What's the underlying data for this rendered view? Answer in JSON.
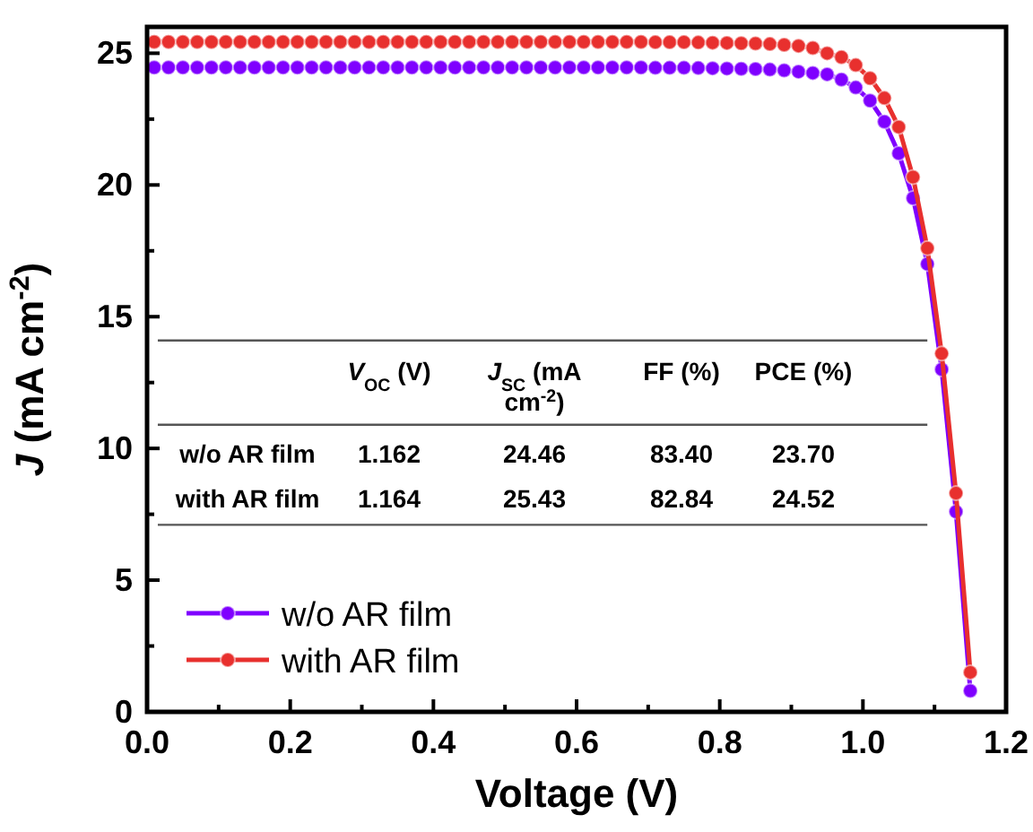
{
  "chart_data": {
    "type": "line",
    "xlabel": "Voltage (V)",
    "ylabel": "J (mA cm$^{-2}$)",
    "xlim": [
      0,
      1.2
    ],
    "ylim": [
      0,
      26
    ],
    "xticks": [
      {
        "value": 0,
        "label": "0.0"
      },
      {
        "value": 0.1,
        "label": null
      },
      {
        "value": 0.2,
        "label": "0.2"
      },
      {
        "value": 0.3,
        "label": null
      },
      {
        "value": 0.4,
        "label": "0.4"
      },
      {
        "value": 0.5,
        "label": null
      },
      {
        "value": 0.6,
        "label": "0.6"
      },
      {
        "value": 0.7,
        "label": null
      },
      {
        "value": 0.8,
        "label": "0.8"
      },
      {
        "value": 0.9,
        "label": null
      },
      {
        "value": 1,
        "label": "1.0"
      },
      {
        "value": 1.1,
        "label": null
      },
      {
        "value": 1.2,
        "label": "1.2"
      }
    ],
    "yticks": [
      0,
      {
        "value": 2.5,
        "label": null
      },
      5,
      {
        "value": 7.5,
        "label": null
      },
      10,
      {
        "value": 12.5,
        "label": null
      },
      15,
      {
        "value": 17.5,
        "label": null
      },
      20,
      {
        "value": 22.5,
        "label": null
      },
      25
    ],
    "x": [
      0.01,
      0.03,
      0.05,
      0.07,
      0.09,
      0.11,
      0.13,
      0.15,
      0.17,
      0.19,
      0.21,
      0.23,
      0.25,
      0.27,
      0.29,
      0.31,
      0.33,
      0.35,
      0.37,
      0.39,
      0.41,
      0.43,
      0.45,
      0.47,
      0.49,
      0.51,
      0.53,
      0.55,
      0.57,
      0.59,
      0.61,
      0.63,
      0.65,
      0.67,
      0.69,
      0.71,
      0.73,
      0.75,
      0.77,
      0.79,
      0.81,
      0.83,
      0.85,
      0.87,
      0.89,
      0.91,
      0.93,
      0.95,
      0.97,
      0.99,
      1.01,
      1.03,
      1.05,
      1.07,
      1.09,
      1.11,
      1.13,
      1.15
    ],
    "series": [
      {
        "name": "w/o AR film",
        "color": "#7f00ff",
        "values": [
          24.46,
          24.46,
          24.46,
          24.46,
          24.46,
          24.46,
          24.46,
          24.46,
          24.46,
          24.46,
          24.46,
          24.46,
          24.46,
          24.46,
          24.46,
          24.46,
          24.46,
          24.46,
          24.46,
          24.46,
          24.46,
          24.46,
          24.46,
          24.46,
          24.46,
          24.46,
          24.46,
          24.46,
          24.46,
          24.46,
          24.46,
          24.46,
          24.46,
          24.46,
          24.46,
          24.45,
          24.45,
          24.45,
          24.44,
          24.43,
          24.42,
          24.41,
          24.4,
          24.38,
          24.35,
          24.3,
          24.25,
          24.2,
          24.0,
          23.7,
          23.2,
          22.4,
          21.2,
          19.5,
          17.0,
          13.0,
          7.6,
          0.8
        ]
      },
      {
        "name": "with AR film",
        "color": "#e8302e",
        "values": [
          25.43,
          25.43,
          25.43,
          25.43,
          25.43,
          25.43,
          25.43,
          25.43,
          25.43,
          25.43,
          25.43,
          25.43,
          25.43,
          25.43,
          25.43,
          25.43,
          25.43,
          25.43,
          25.43,
          25.43,
          25.43,
          25.43,
          25.43,
          25.43,
          25.43,
          25.43,
          25.43,
          25.43,
          25.43,
          25.43,
          25.43,
          25.43,
          25.43,
          25.43,
          25.43,
          25.42,
          25.42,
          25.42,
          25.41,
          25.4,
          25.39,
          25.38,
          25.37,
          25.35,
          25.32,
          25.28,
          25.2,
          25.0,
          24.85,
          24.55,
          24.05,
          23.3,
          22.2,
          20.3,
          17.6,
          13.6,
          8.3,
          1.5
        ]
      }
    ],
    "marker": "circle",
    "legend": "bottom left",
    "annotations": [
      "V$_{OC}$ (V)",
      "J$_{SC}$ (mA cm$^{-2}$)",
      "FF (%)",
      "PCE (%)",
      "w/o AR film",
      "1.162",
      "24.46",
      "83.40",
      "23.70",
      "with AR film",
      "1.164",
      "25.43",
      "82.84",
      "24.52"
    ]
  }
}
